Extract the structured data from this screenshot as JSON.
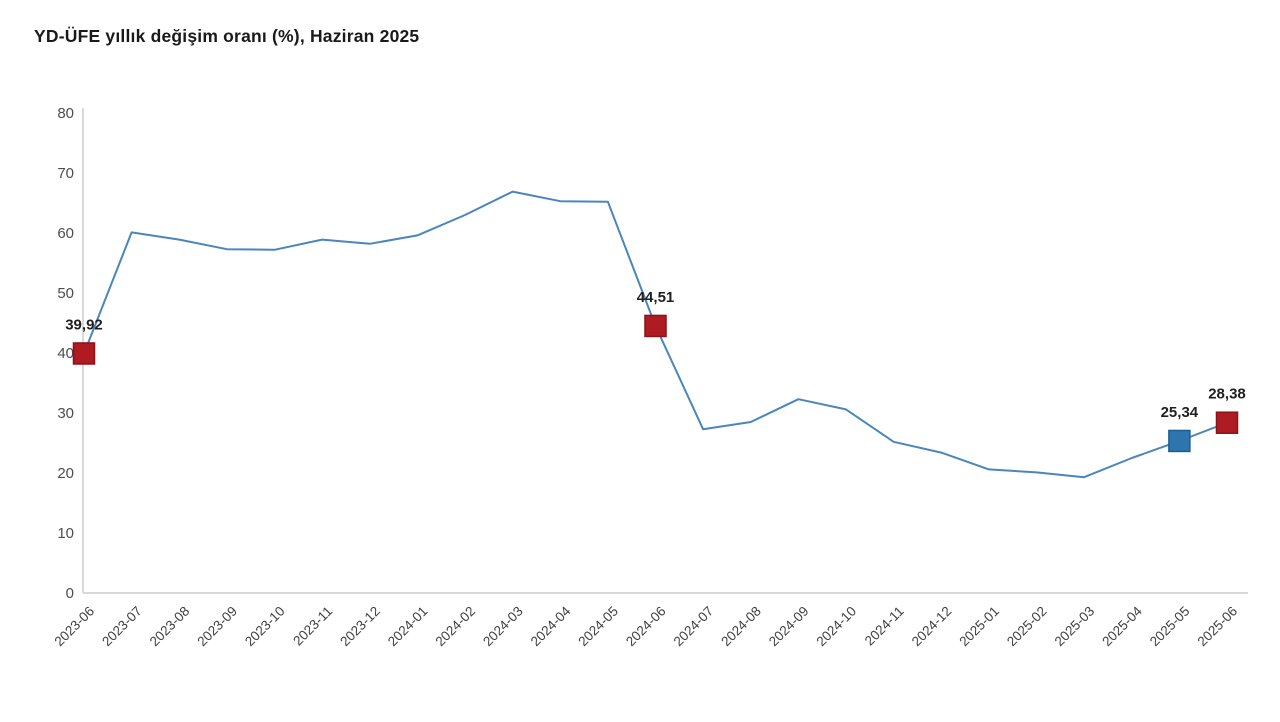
{
  "title": "YD-ÜFE yıllık değişim oranı (%), Haziran 2025",
  "chart_data": {
    "type": "line",
    "title": "YD-ÜFE yıllık değişim oranı (%), Haziran 2025",
    "xlabel": "",
    "ylabel": "",
    "ylim": [
      0,
      80
    ],
    "ytick_step": 10,
    "grid": false,
    "legend": "none",
    "line_color": "#4a86bd",
    "axis_color": "#d9d9d9",
    "categories": [
      "2023-06",
      "2023-07",
      "2023-08",
      "2023-09",
      "2023-10",
      "2023-11",
      "2023-12",
      "2024-01",
      "2024-02",
      "2024-03",
      "2024-04",
      "2024-05",
      "2024-06",
      "2024-07",
      "2024-08",
      "2024-09",
      "2024-10",
      "2024-11",
      "2024-12",
      "2025-01",
      "2025-02",
      "2025-03",
      "2025-04",
      "2025-05",
      "2025-06"
    ],
    "values": [
      39.92,
      60.1,
      58.9,
      57.3,
      57.2,
      58.9,
      58.2,
      59.6,
      63.0,
      66.9,
      65.3,
      65.2,
      44.51,
      27.3,
      28.5,
      32.3,
      30.6,
      25.2,
      23.4,
      20.6,
      20.1,
      19.3,
      22.5,
      25.34,
      28.38
    ],
    "labeled_points": [
      {
        "index": 0,
        "label": "39,92",
        "marker_color": "#af1b23",
        "marker_stroke": "#8c1119"
      },
      {
        "index": 12,
        "label": "44,51",
        "marker_color": "#af1b23",
        "marker_stroke": "#8c1119"
      },
      {
        "index": 23,
        "label": "25,34",
        "marker_color": "#2e74ad",
        "marker_stroke": "#1e5e92"
      },
      {
        "index": 24,
        "label": "28,38",
        "marker_color": "#af1b23",
        "marker_stroke": "#8c1119"
      }
    ]
  }
}
